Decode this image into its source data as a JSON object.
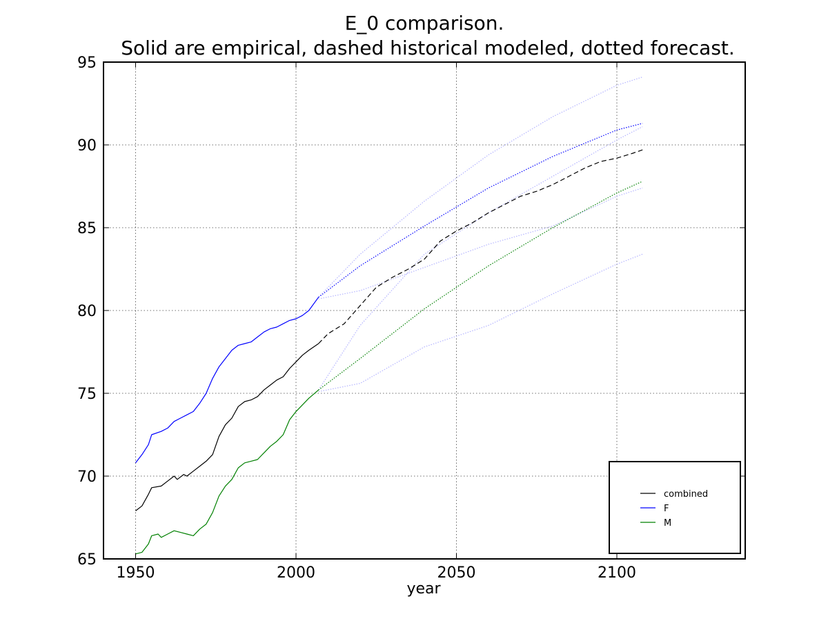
{
  "chart_data": {
    "type": "line",
    "title": "E_0 comparison.",
    "subtitle": "Solid are empirical, dashed historical modeled, dotted forecast.",
    "xlabel": "year",
    "ylabel": "",
    "xlim": [
      1940,
      2140
    ],
    "ylim": [
      65,
      95
    ],
    "xticks": [
      1950,
      2000,
      2050,
      2100
    ],
    "yticks": [
      65,
      70,
      75,
      80,
      85,
      90,
      95
    ],
    "grid": true,
    "legend_position": "bottom-right",
    "legend": [
      {
        "name": "combined",
        "color": "#000000"
      },
      {
        "name": "F",
        "color": "#0000ff"
      },
      {
        "name": "M",
        "color": "#008000"
      }
    ],
    "series": [
      {
        "name": "combined",
        "color": "#000000",
        "style": "solid",
        "kind": "empirical",
        "x": [
          1950,
          1952,
          1954,
          1955,
          1958,
          1960,
          1962,
          1963,
          1965,
          1966,
          1968,
          1970,
          1972,
          1974,
          1976,
          1978,
          1980,
          1982,
          1984,
          1986,
          1988,
          1990,
          1992,
          1994,
          1996,
          1998,
          2000,
          2002,
          2004,
          2007
        ],
        "y": [
          67.9,
          68.2,
          68.9,
          69.3,
          69.4,
          69.7,
          70.0,
          69.8,
          70.1,
          70.0,
          70.3,
          70.6,
          70.9,
          71.3,
          72.4,
          73.1,
          73.5,
          74.2,
          74.5,
          74.6,
          74.8,
          75.2,
          75.5,
          75.8,
          76.0,
          76.5,
          76.9,
          77.3,
          77.6,
          78.0
        ]
      },
      {
        "name": "combined",
        "color": "#000000",
        "style": "dashed",
        "kind": "modeled",
        "x": [
          2007,
          2010,
          2015,
          2020,
          2025,
          2030,
          2035,
          2040,
          2045,
          2050,
          2055,
          2060,
          2065,
          2070,
          2075,
          2080,
          2085,
          2090,
          2095,
          2100,
          2105,
          2108
        ],
        "y": [
          78.0,
          78.6,
          79.2,
          80.3,
          81.4,
          82.0,
          82.5,
          83.1,
          84.2,
          84.8,
          85.3,
          85.9,
          86.4,
          86.9,
          87.2,
          87.6,
          88.1,
          88.6,
          89.0,
          89.2,
          89.5,
          89.7
        ]
      },
      {
        "name": "F",
        "color": "#0000ff",
        "style": "solid",
        "kind": "empirical",
        "x": [
          1950,
          1952,
          1954,
          1955,
          1958,
          1960,
          1962,
          1964,
          1966,
          1968,
          1970,
          1972,
          1974,
          1976,
          1978,
          1980,
          1982,
          1984,
          1986,
          1988,
          1990,
          1992,
          1994,
          1996,
          1998,
          2000,
          2002,
          2004,
          2007
        ],
        "y": [
          70.8,
          71.3,
          71.9,
          72.5,
          72.7,
          72.9,
          73.3,
          73.5,
          73.7,
          73.9,
          74.4,
          75.0,
          75.9,
          76.6,
          77.1,
          77.6,
          77.9,
          78.0,
          78.1,
          78.4,
          78.7,
          78.9,
          79.0,
          79.2,
          79.4,
          79.5,
          79.7,
          80.0,
          80.8
        ]
      },
      {
        "name": "F",
        "color": "#0000ff",
        "style": "dotted",
        "kind": "forecast",
        "x": [
          2007,
          2020,
          2040,
          2060,
          2080,
          2100,
          2108
        ],
        "y": [
          80.8,
          82.7,
          85.1,
          87.4,
          89.3,
          90.9,
          91.3
        ]
      },
      {
        "name": "M",
        "color": "#008000",
        "style": "solid",
        "kind": "empirical",
        "x": [
          1950,
          1952,
          1954,
          1955,
          1957,
          1958,
          1960,
          1962,
          1964,
          1966,
          1968,
          1970,
          1972,
          1974,
          1976,
          1978,
          1980,
          1982,
          1984,
          1986,
          1988,
          1990,
          1992,
          1994,
          1996,
          1998,
          2000,
          2002,
          2004,
          2007
        ],
        "y": [
          65.3,
          65.4,
          65.9,
          66.4,
          66.5,
          66.3,
          66.5,
          66.7,
          66.6,
          66.5,
          66.4,
          66.8,
          67.1,
          67.8,
          68.8,
          69.4,
          69.8,
          70.5,
          70.8,
          70.9,
          71.0,
          71.4,
          71.8,
          72.1,
          72.5,
          73.4,
          73.9,
          74.3,
          74.7,
          75.2
        ]
      },
      {
        "name": "M",
        "color": "#008000",
        "style": "dotted",
        "kind": "forecast",
        "x": [
          2007,
          2020,
          2040,
          2060,
          2080,
          2100,
          2108
        ],
        "y": [
          75.2,
          77.1,
          80.1,
          82.7,
          85.0,
          87.1,
          87.8
        ]
      }
    ],
    "confidence_bands": [
      {
        "color": "#b3b3ff",
        "style": "dotted",
        "x": [
          2007,
          2020,
          2040,
          2060,
          2080,
          2100,
          2108
        ],
        "upper": [
          80.8,
          83.4,
          86.6,
          89.4,
          91.7,
          93.6,
          94.1
        ],
        "lower": [
          80.7,
          81.2,
          82.6,
          84.0,
          85.1,
          86.9,
          87.4
        ]
      },
      {
        "color": "#b3b3ff",
        "style": "dotted",
        "x": [
          2007,
          2020,
          2040,
          2060,
          2080,
          2100,
          2108
        ],
        "upper": [
          75.2,
          79.1,
          83.4,
          85.9,
          88.1,
          90.3,
          91.1
        ],
        "lower": [
          75.1,
          75.6,
          77.8,
          79.1,
          81.0,
          82.8,
          83.4
        ]
      }
    ]
  }
}
